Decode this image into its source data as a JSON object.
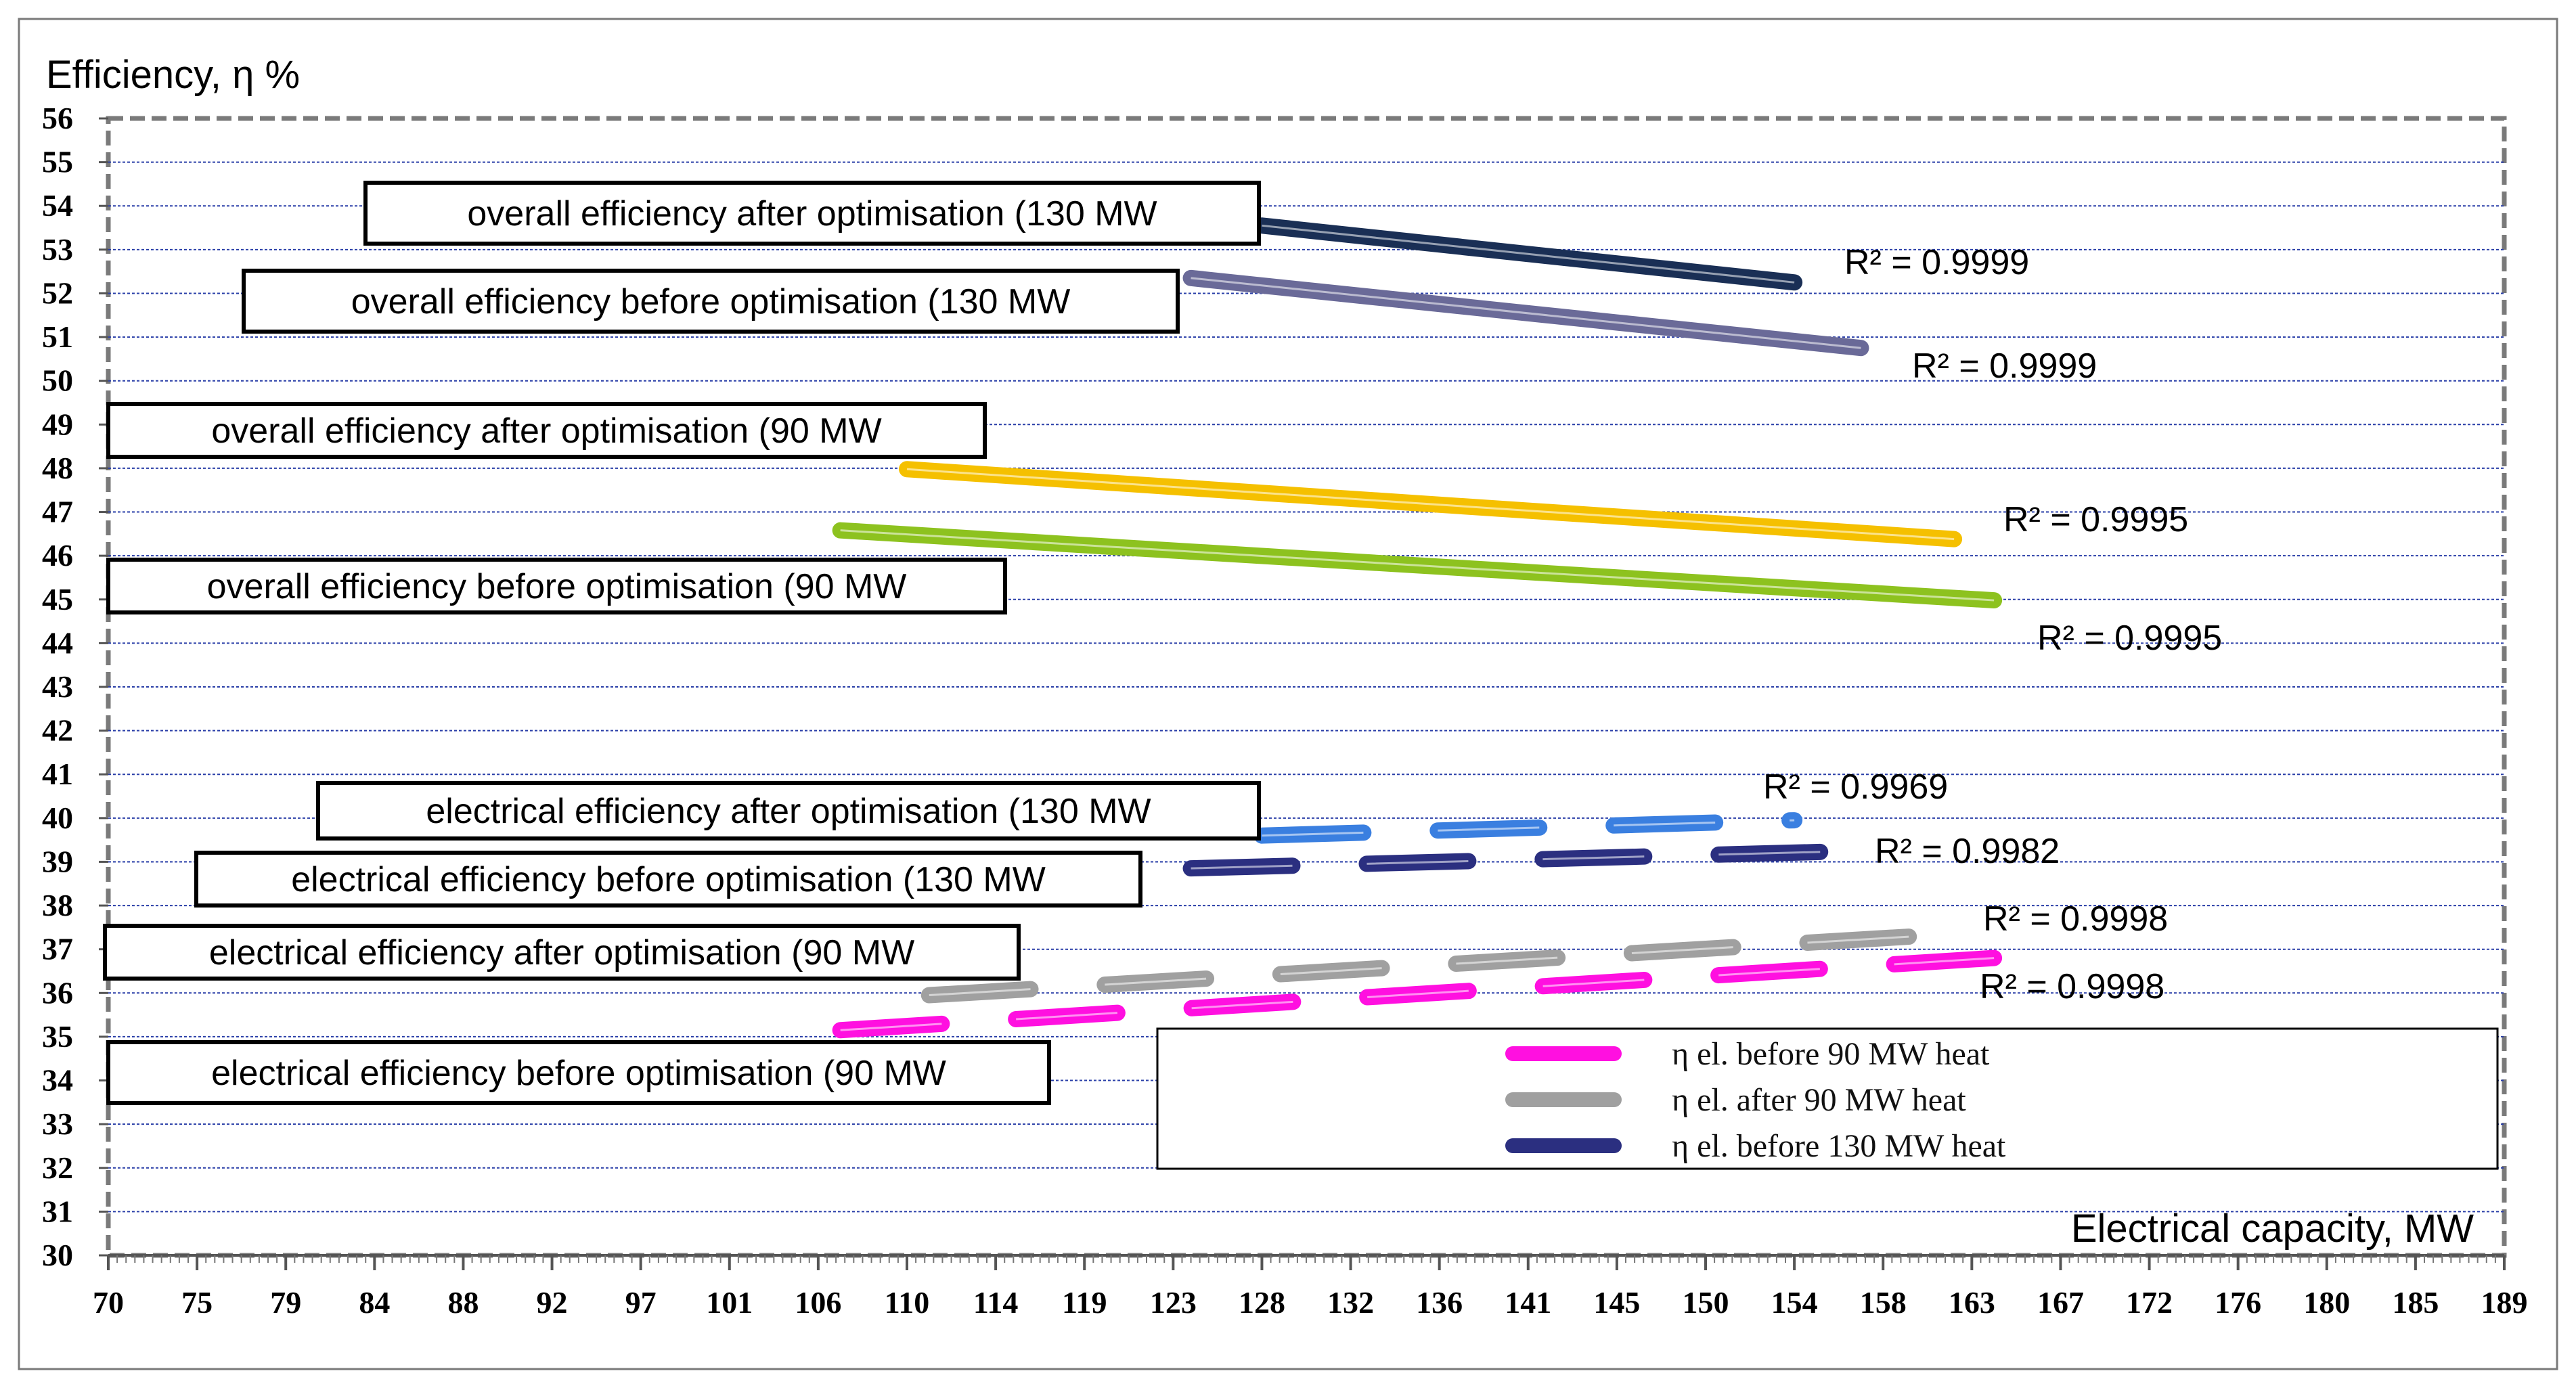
{
  "chart_data": {
    "type": "line",
    "ylabel": "Efficiency, η %",
    "xlabel": "Electrical capacity, MW",
    "ylim": [
      30,
      56
    ],
    "yticks": [
      "30",
      "31",
      "32",
      "33",
      "34",
      "35",
      "36",
      "37",
      "38",
      "39",
      "40",
      "41",
      "42",
      "43",
      "44",
      "45",
      "46",
      "47",
      "48",
      "49",
      "50",
      "51",
      "52",
      "53",
      "54",
      "55",
      "56"
    ],
    "x_tick_labels": [
      "70",
      "75",
      "79",
      "84",
      "88",
      "92",
      "97",
      "101",
      "106",
      "110",
      "114",
      "119",
      "123",
      "128",
      "132",
      "136",
      "141",
      "145",
      "150",
      "154",
      "158",
      "163",
      "167",
      "172",
      "176",
      "180",
      "185",
      "189"
    ],
    "grid": "horizontal",
    "series": [
      {
        "key": "ov_after_130",
        "name": "overall efficiency after optimisation (130 MW",
        "color": "#1a2f55",
        "dash": "solid",
        "x_range": [
          128,
          154
        ],
        "y_start": 53.55,
        "y_end": 52.25,
        "r2": "R² = 0.9999"
      },
      {
        "key": "ov_before_130",
        "name": "overall efficiency before optimisation (130 MW",
        "color": "#6a6a98",
        "dash": "solid",
        "x_range": [
          124,
          157
        ],
        "y_start": 52.35,
        "y_end": 50.75,
        "r2": "R² = 0.9999"
      },
      {
        "key": "ov_after_90",
        "name": "overall efficiency after optimisation (90 MW",
        "color": "#f5c000",
        "dash": "solid",
        "x_range": [
          110,
          162
        ],
        "y_start": 47.98,
        "y_end": 46.38,
        "r2": "R² = 0.9995"
      },
      {
        "key": "ov_before_90",
        "name": "overall efficiency before optimisation (90 MW",
        "color": "#8dc21f",
        "dash": "solid",
        "x_range": [
          107,
          164
        ],
        "y_start": 46.58,
        "y_end": 44.98,
        "r2": "R² = 0.9995"
      },
      {
        "key": "el_after_130",
        "name": "electrical efficiency after optimisation (130 MW",
        "color": "#3a7fe0",
        "dash": "dashed",
        "x_range": [
          128,
          154
        ],
        "y_start": 39.6,
        "y_end": 39.95,
        "r2": "R² = 0.9969"
      },
      {
        "key": "el_before_130",
        "name": "electrical efficiency before optimisation (130 MW",
        "color": "#2b2f80",
        "dash": "dashed",
        "x_range": [
          124,
          157
        ],
        "y_start": 38.85,
        "y_end": 39.25,
        "r2": "R² = 0.9982"
      },
      {
        "key": "el_after_90",
        "name": "electrical efficiency after optimisation (90 MW",
        "color": "#a0a0a0",
        "dash": "dashed",
        "x_range": [
          111,
          162
        ],
        "y_start": 35.95,
        "y_end": 37.35,
        "r2": "R² = 0.9998"
      },
      {
        "key": "el_before_90",
        "name": "electrical efficiency before optimisation (90 MW",
        "color": "#ff10e0",
        "dash": "dashed",
        "x_range": [
          107,
          164
        ],
        "y_start": 35.15,
        "y_end": 36.8,
        "r2": "R² = 0.9998"
      }
    ],
    "legend": [
      {
        "label": "η el. before 90 MW heat",
        "color": "#ff10e0"
      },
      {
        "label": "η el. after 90 MW heat",
        "color": "#a0a0a0"
      },
      {
        "label": "η el. before 130 MW heat",
        "color": "#2b2f80"
      }
    ]
  }
}
